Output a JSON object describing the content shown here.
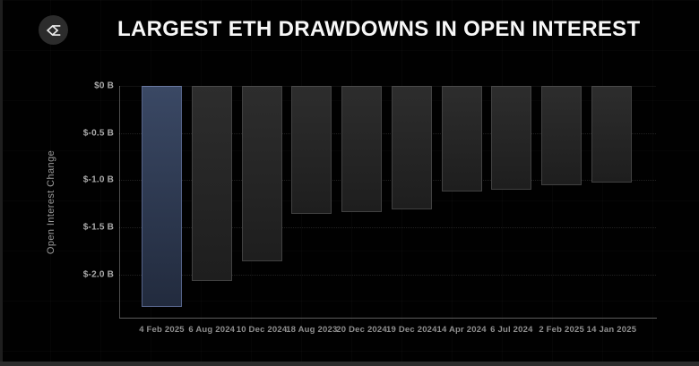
{
  "header": {
    "title": "LARGEST ETH DRAWDOWNS IN OPEN INTEREST",
    "logo_icon": "sigma-diamond-logo"
  },
  "chart_data": {
    "type": "bar",
    "title": "LARGEST ETH DRAWDOWNS IN OPEN INTEREST",
    "xlabel": "",
    "ylabel": "Open Interest Change",
    "unit": "$ billions",
    "categories": [
      "4 Feb 2025",
      "6 Aug 2024",
      "10 Dec 2024",
      "18 Aug 2023",
      "20 Dec 2024",
      "19 Dec 2024",
      "14 Apr 2024",
      "6 Jul 2024",
      "2 Feb 2025",
      "14 Jan 2025"
    ],
    "values": [
      -2.35,
      -2.07,
      -1.86,
      -1.36,
      -1.34,
      -1.31,
      -1.12,
      -1.1,
      -1.05,
      -1.03
    ],
    "highlight_index": 0,
    "y_ticks": [
      {
        "label": "$0 B",
        "value": 0
      },
      {
        "label": "$-0.5 B",
        "value": -0.5
      },
      {
        "label": "$-1.0 B",
        "value": -1.0
      },
      {
        "label": "$-1.5 B",
        "value": -1.5
      },
      {
        "label": "$-2.0 B",
        "value": -2.0
      }
    ],
    "ylim": [
      0,
      -2.47
    ],
    "grid": "horizontal-dotted",
    "legend": "none",
    "colors": {
      "background": "#010101",
      "highlight_bar": "#3a4864",
      "highlight_bar_border": "#56648a",
      "bar": "#2a2a2a",
      "bar_border": "#414141",
      "axis_line": "#5d5d5d",
      "tick_text": "#ababab",
      "x_label_text": "#8f8f8f",
      "title_text": "#f7f7f7"
    }
  }
}
